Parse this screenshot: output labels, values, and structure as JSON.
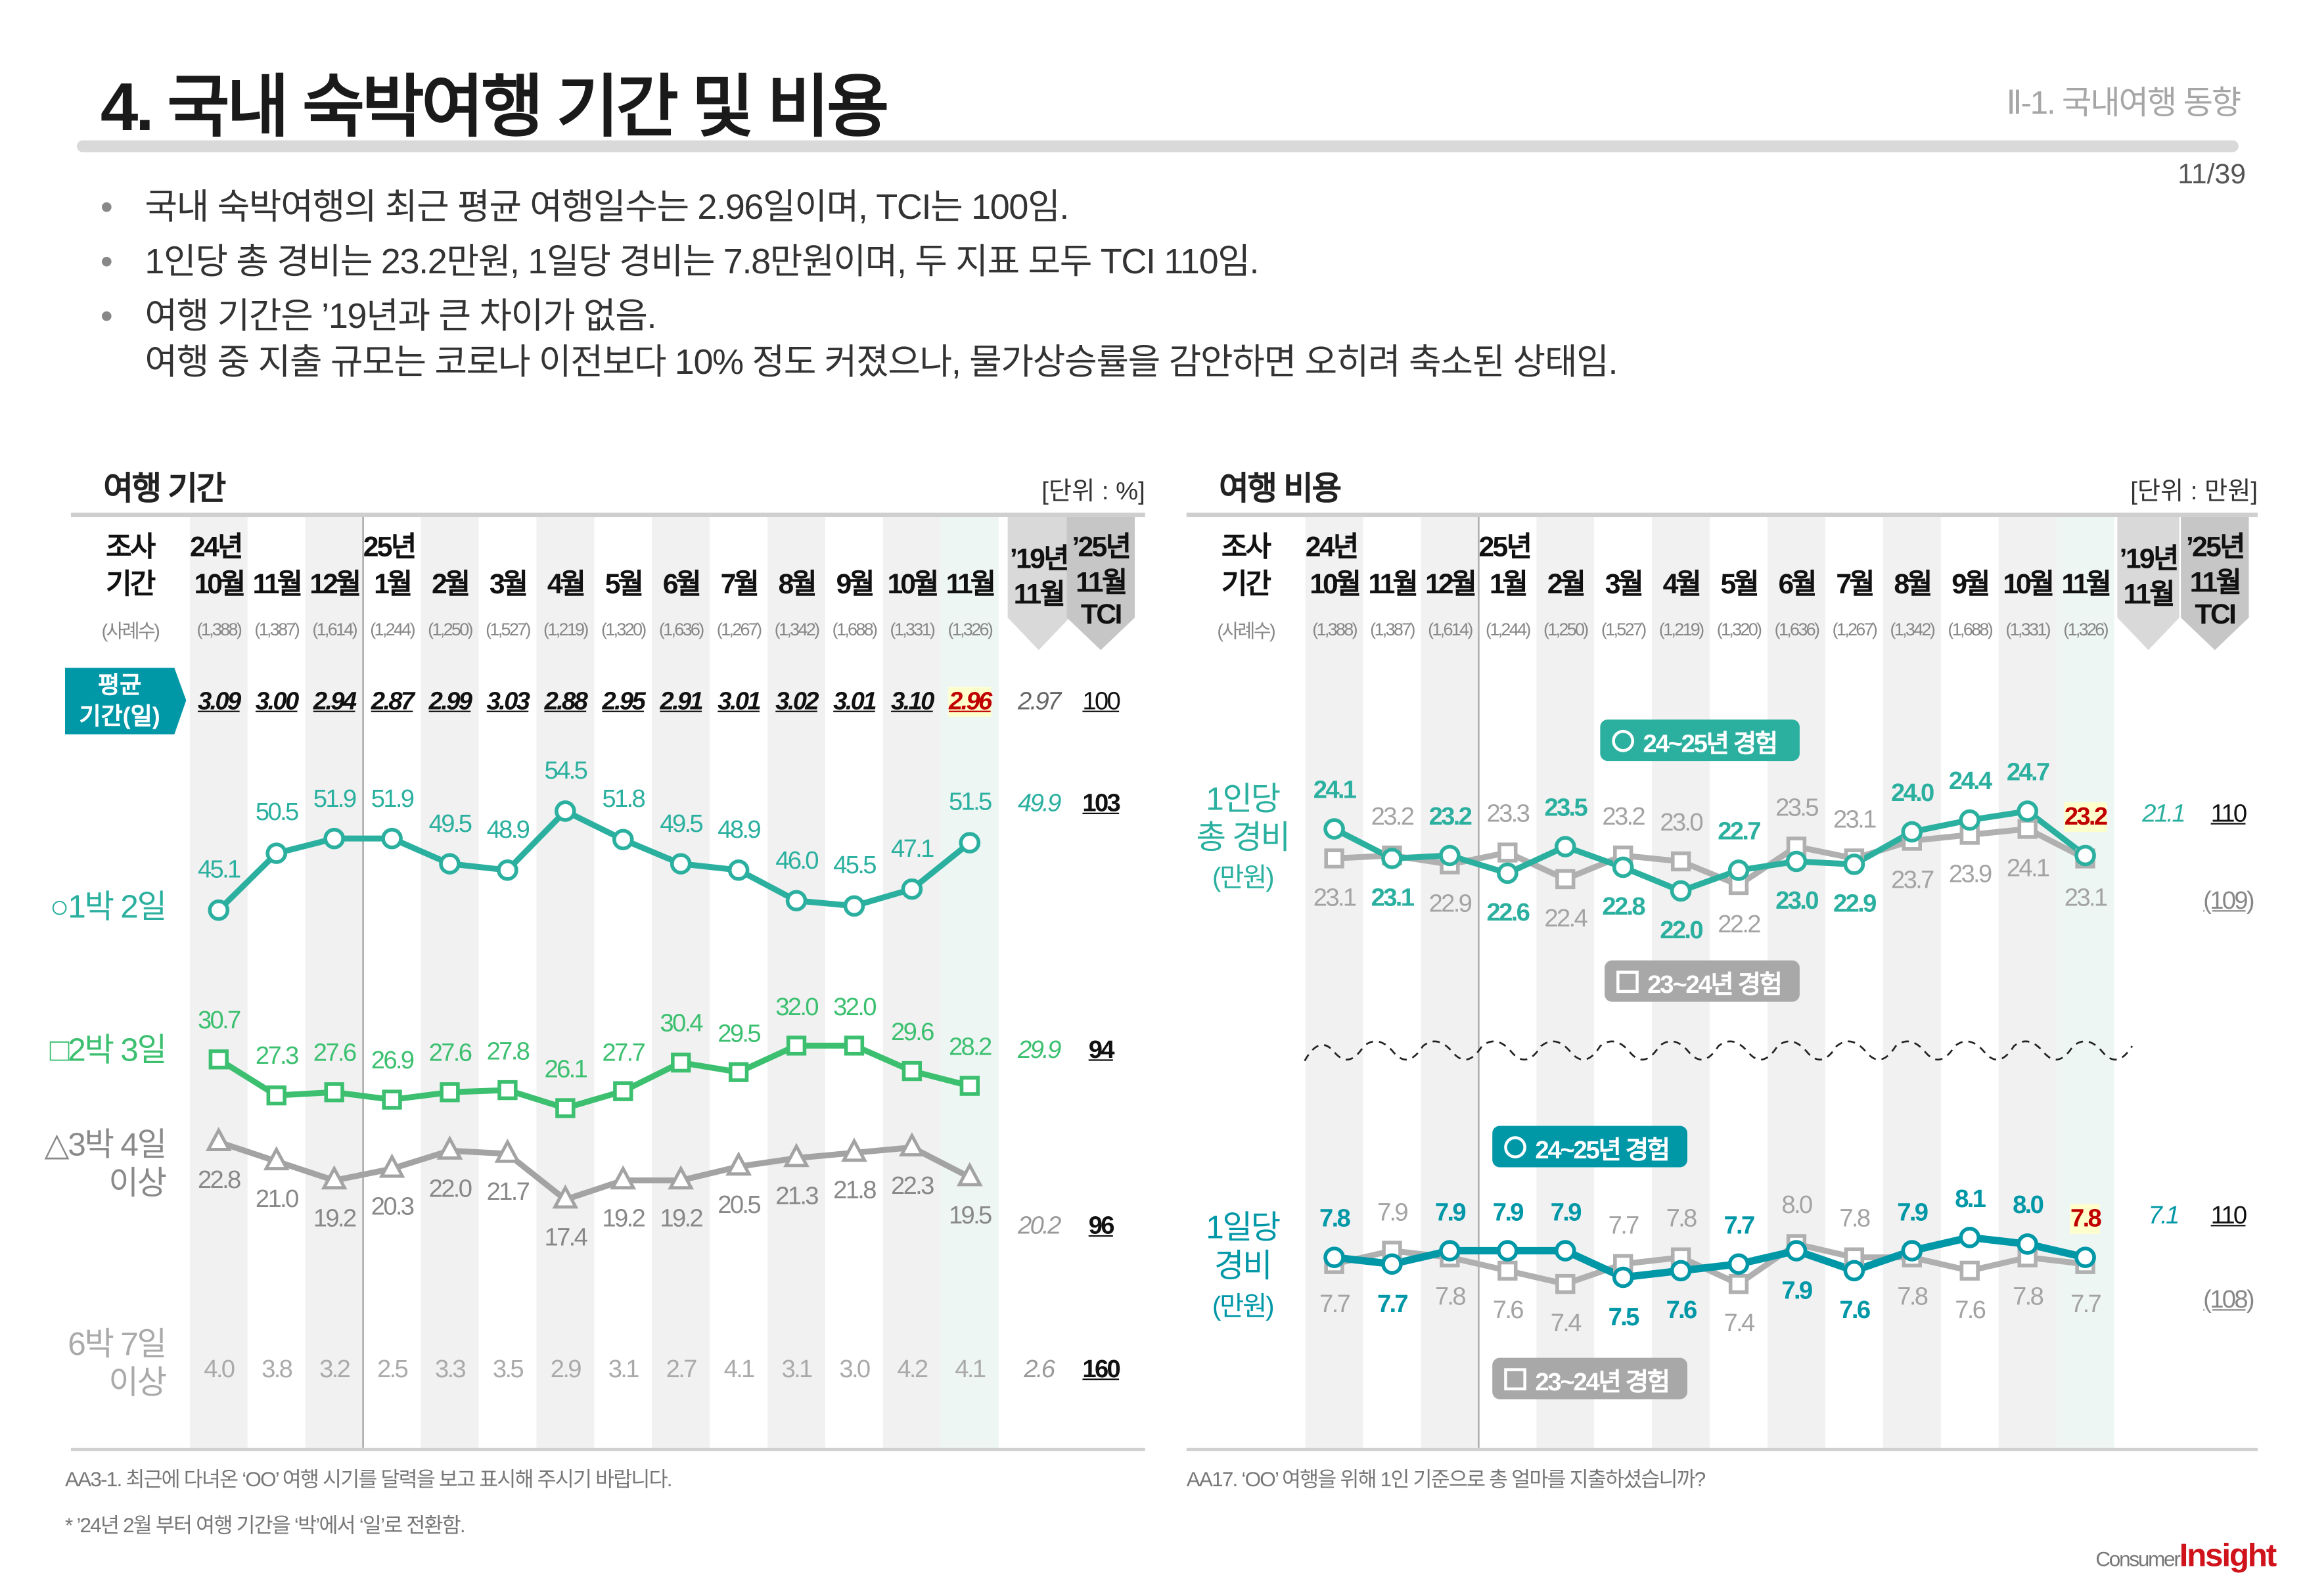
{
  "header": {
    "title": "4. 국내 숙박여행 기간 및 비용",
    "section": "Ⅱ-1. 국내여행 동향",
    "page": "11/39"
  },
  "bullets": [
    "국내 숙박여행의 최근 평균 여행일수는 2.96일이며, TCI는 100임.",
    "1인당 총 경비는 23.2만원, 1일당 경비는 7.8만원이며, 두 지표 모두 TCI 110임.",
    "여행 기간은 ’19년과 큰 차이가 없음."
  ],
  "bullet3_cont": "여행 중 지출 규모는 코로나 이전보다 10% 정도 커졌으나, 물가상승률을 감안하면 오히려 축소된 상태임.",
  "table_header": {
    "survey1": "조사",
    "survey2": "기간",
    "sample_label": "(사례수)",
    "year_24": "24년",
    "year_25": "25년",
    "col19_1": "’19년",
    "col19_2": "11월",
    "tci_1": "’25년",
    "tci_2": "11월",
    "tci_3": "TCI"
  },
  "left": {
    "title": "여행 기간",
    "unit": "[단위 : %]",
    "samples": [
      "(1,388)",
      "(1,387)",
      "(1,614)",
      "(1,244)",
      "(1,250)",
      "(1,527)",
      "(1,219)",
      "(1,320)",
      "(1,636)",
      "(1,267)",
      "(1,342)",
      "(1,688)",
      "(1,331)",
      "(1,326)"
    ],
    "avg_label_1": "평균",
    "avg_label_2": "기간(일)",
    "row_labels": {
      "s1": "○1박 2일",
      "s2": "□2박 3일",
      "s3a": "△3박 4일",
      "s3b": "이상",
      "s4a": "6박 7일",
      "s4b": "이상"
    },
    "footnote1": "AA3-1. 최근에 다녀온 ‘OO’ 여행 시기를 달력을 보고 표시해 주시기 바랍니다.",
    "footnote2": "* ’24년 2월 부터 여행 기간을 ‘박’에서 ‘일’로 전환함."
  },
  "right": {
    "title": "여행 비용",
    "unit": "[단위 : 만원]",
    "samples": [
      "(1,388)",
      "(1,387)",
      "(1,614)",
      "(1,244)",
      "(1,250)",
      "(1,527)",
      "(1,219)",
      "(1,320)",
      "(1,636)",
      "(1,267)",
      "(1,342)",
      "(1,688)",
      "(1,331)",
      "(1,326)"
    ],
    "total_label": [
      "1인당",
      "총 경비",
      "(만원)"
    ],
    "daily_label": [
      "1일당",
      "경비",
      "(만원)"
    ],
    "legend_current": "24~25년 경험",
    "legend_prior": "23~24년 경험",
    "footnote1": "AA17. ‘OO’ 여행을 위해 1인 기준으로 총 얼마를 지출하셨습니까?"
  },
  "logo": {
    "part1": "Consumer",
    "part2": "Insight"
  },
  "colors": {
    "teal": "#2bb0a0",
    "green": "#3cc070",
    "gray": "#a3a3a3",
    "daily_teal": "#0097a7",
    "highlight_red": "#c00000",
    "highlight_bg": "#ffffcc"
  },
  "chart_data": [
    {
      "type": "line",
      "title": "여행 기간",
      "unit": "[단위 : %]",
      "categories": [
        "10월",
        "11월",
        "12월",
        "1월",
        "2월",
        "3월",
        "4월",
        "5월",
        "6월",
        "7월",
        "8월",
        "9월",
        "10월",
        "11월"
      ],
      "average_days": {
        "values": [
          3.09,
          3.0,
          2.94,
          2.87,
          2.99,
          3.03,
          2.88,
          2.95,
          2.91,
          3.01,
          3.02,
          3.01,
          3.1,
          2.96
        ],
        "ref_2019": 2.97,
        "tci": 100
      },
      "series": [
        {
          "name": "1박 2일",
          "marker": "circle",
          "values": [
            45.1,
            50.5,
            51.9,
            51.9,
            49.5,
            48.9,
            54.5,
            51.8,
            49.5,
            48.9,
            46.0,
            45.5,
            47.1,
            51.5
          ],
          "ref_2019": 49.9,
          "tci": 103
        },
        {
          "name": "2박 3일",
          "marker": "square",
          "values": [
            30.7,
            27.3,
            27.6,
            26.9,
            27.6,
            27.8,
            26.1,
            27.7,
            30.4,
            29.5,
            32.0,
            32.0,
            29.6,
            28.2
          ],
          "ref_2019": 29.9,
          "tci": 94
        },
        {
          "name": "3박 4일 이상",
          "marker": "triangle",
          "values": [
            22.8,
            21.0,
            19.2,
            20.3,
            22.0,
            21.7,
            17.4,
            19.2,
            19.2,
            20.5,
            21.3,
            21.8,
            22.3,
            19.5
          ],
          "ref_2019": 20.2,
          "tci": 96
        },
        {
          "name": "6박 7일 이상",
          "marker": "none",
          "values": [
            4.0,
            3.8,
            3.2,
            2.5,
            3.3,
            3.5,
            2.9,
            3.1,
            2.7,
            4.1,
            3.1,
            3.0,
            4.2,
            4.1
          ],
          "ref_2019": 2.6,
          "tci": 160
        }
      ]
    },
    {
      "type": "line",
      "title": "여행 비용",
      "unit": "[단위 : 만원]",
      "categories": [
        "10월",
        "11월",
        "12월",
        "1월",
        "2월",
        "3월",
        "4월",
        "5월",
        "6월",
        "7월",
        "8월",
        "9월",
        "10월",
        "11월"
      ],
      "panels": [
        {
          "name": "1인당 총 경비",
          "current": {
            "name": "24~25년 경험",
            "values": [
              24.1,
              23.1,
              23.2,
              22.6,
              23.5,
              22.8,
              22.0,
              22.7,
              23.0,
              22.9,
              24.0,
              24.4,
              24.7,
              23.2
            ]
          },
          "prior": {
            "name": "23~24년 경험",
            "values": [
              23.1,
              23.2,
              22.9,
              23.3,
              22.4,
              23.2,
              23.0,
              22.2,
              23.5,
              23.1,
              23.7,
              23.9,
              24.1,
              23.1
            ]
          },
          "ref_2019": 21.1,
          "tci": 110,
          "tci_prior": "(109)"
        },
        {
          "name": "1일당 경비",
          "current": {
            "name": "24~25년 경험",
            "values": [
              7.8,
              7.7,
              7.9,
              7.9,
              7.9,
              7.5,
              7.6,
              7.7,
              7.9,
              7.6,
              7.9,
              8.1,
              8.0,
              7.8
            ]
          },
          "prior": {
            "name": "23~24년 경험",
            "values": [
              7.7,
              7.9,
              7.8,
              7.6,
              7.4,
              7.7,
              7.8,
              7.4,
              8.0,
              7.8,
              7.8,
              7.6,
              7.8,
              7.7
            ]
          },
          "ref_2019": 7.1,
          "tci": 110,
          "tci_prior": "(108)"
        }
      ]
    }
  ]
}
